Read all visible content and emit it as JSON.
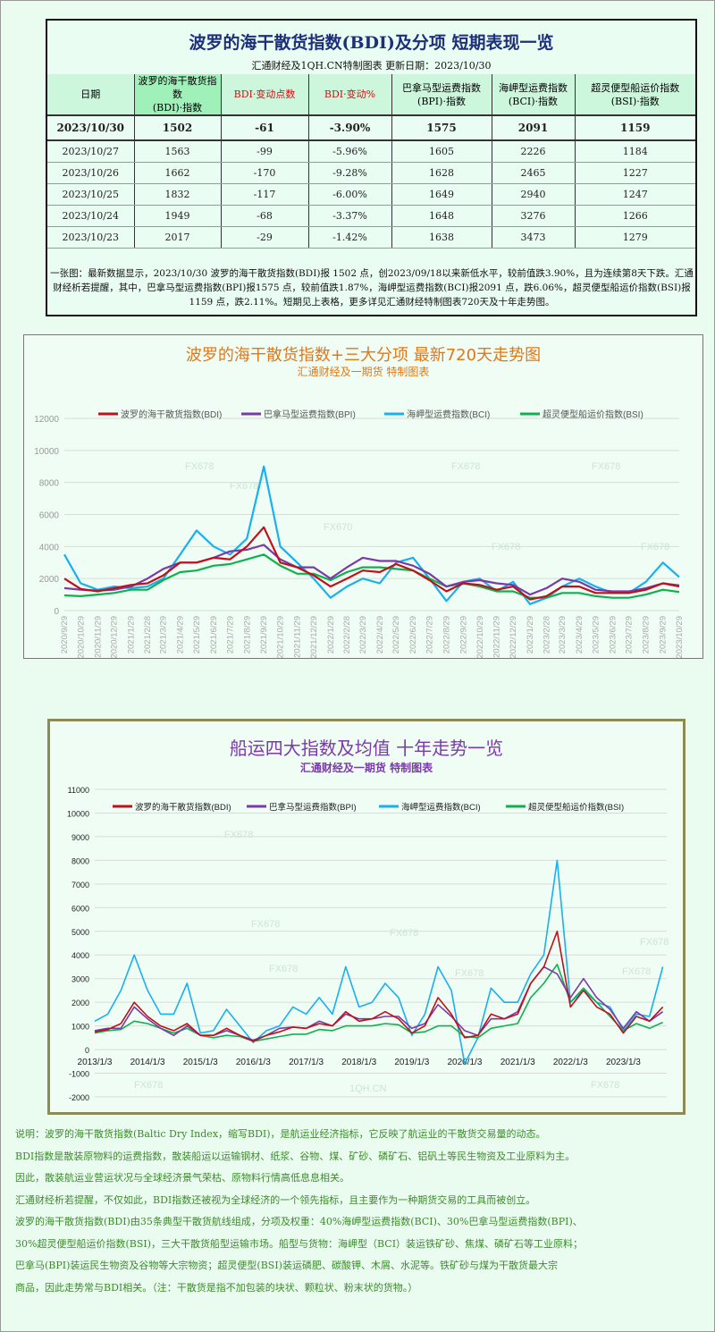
{
  "table": {
    "title": "波罗的海干散货指数(BDI)及分项 短期表现一览",
    "subtitle": "汇通财经及1QH.CN特制图表    更新日期：2023/10/30",
    "headers": [
      [
        "日期",
        ""
      ],
      [
        "波罗的海干散货指数",
        "(BDI)·指数"
      ],
      [
        "BDI·变动点数",
        ""
      ],
      [
        "BDI·变动%",
        ""
      ],
      [
        "巴拿马型运费指数",
        "(BPI)·指数"
      ],
      [
        "海岬型运费指数",
        "(BCI)·指数"
      ],
      [
        "超灵便型船运价指数",
        "(BSI)·指数"
      ]
    ],
    "rows": [
      [
        "2023/10/30",
        "1502",
        "-61",
        "-3.90%",
        "1575",
        "2091",
        "1159"
      ],
      [
        "2023/10/27",
        "1563",
        "-99",
        "-5.96%",
        "1605",
        "2226",
        "1184"
      ],
      [
        "2023/10/26",
        "1662",
        "-170",
        "-9.28%",
        "1628",
        "2465",
        "1227"
      ],
      [
        "2023/10/25",
        "1832",
        "-117",
        "-6.00%",
        "1649",
        "2940",
        "1247"
      ],
      [
        "2023/10/24",
        "1949",
        "-68",
        "-3.37%",
        "1648",
        "3276",
        "1266"
      ],
      [
        "2023/10/23",
        "2017",
        "-29",
        "-1.42%",
        "1638",
        "3473",
        "1279"
      ]
    ],
    "summary": "一张图：最新数据显示，2023/10/30 波罗的海干散货指数(BDI)报 1502 点，创2023/09/18以来新低水平，较前值跌3.90%，且为连续第8天下跌。汇通财经析若提醒，其中，巴拿马型运费指数(BPI)报1575 点，较前值跌1.87%，海岬型运费指数(BCI)报2091 点，跌6.06%，超灵便型船运价指数(BSI)报1159 点，跌2.11%。短期见上表格，更多详见汇通财经特制图表720天及十年走势图。"
  },
  "colors": {
    "BDI": "#c0101a",
    "BPI": "#7a3aa8",
    "BCI": "#18b0ee",
    "BSI": "#10b050",
    "title1": "#e07818",
    "title2": "#7a3aa8",
    "notes": "#3d8a2c"
  },
  "chart_data": [
    {
      "type": "line",
      "title": "波罗的海干散货指数+三大分项  最新720天走势图",
      "subtitle": "汇通财经及一期货  特制图表",
      "ylim": [
        0,
        12000
      ],
      "yticks": [
        0,
        2000,
        4000,
        6000,
        8000,
        10000,
        12000
      ],
      "grid": true,
      "legend": "top",
      "watermarks": [
        "FX678",
        "FX678",
        "FX678",
        "FX670",
        "FX678",
        "FX678",
        "FX678"
      ],
      "x": [
        "2020/9/29",
        "2020/10/29",
        "2020/11/29",
        "2020/12/29",
        "2021/1/29",
        "2021/2/28",
        "2021/3/29",
        "2021/4/29",
        "2021/5/29",
        "2021/6/29",
        "2021/7/29",
        "2021/8/29",
        "2021/9/29",
        "2021/10/29",
        "2021/11/29",
        "2021/12/29",
        "2022/1/29",
        "2022/2/28",
        "2022/3/29",
        "2022/4/29",
        "2022/5/29",
        "2022/6/29",
        "2022/7/29",
        "2022/8/29",
        "2022/9/29",
        "2022/10/29",
        "2022/11/29",
        "2022/12/29",
        "2023/1/29",
        "2023/2/28",
        "2023/3/29",
        "2023/4/29",
        "2023/5/29",
        "2023/6/29",
        "2023/7/29",
        "2023/8/29",
        "2023/9/29",
        "2023/10/29"
      ],
      "series": [
        {
          "name": "波罗的海干散货指数(BDI)",
          "key": "BDI",
          "values": [
            2000,
            1350,
            1200,
            1400,
            1600,
            1700,
            2200,
            3000,
            3000,
            3300,
            3200,
            4000,
            5200,
            3000,
            2700,
            2200,
            1500,
            2000,
            2500,
            2400,
            2900,
            2500,
            1900,
            1200,
            1700,
            1600,
            1300,
            1500,
            700,
            900,
            1500,
            1500,
            1100,
            1100,
            1100,
            1300,
            1700,
            1500
          ]
        },
        {
          "name": "巴拿马型运费指数(BPI)",
          "key": "BPI",
          "values": [
            1400,
            1300,
            1250,
            1300,
            1500,
            2000,
            2600,
            3000,
            3000,
            3300,
            3700,
            3800,
            4100,
            3200,
            2700,
            2700,
            2000,
            2700,
            3300,
            3100,
            3100,
            2800,
            2300,
            1500,
            1800,
            1900,
            1700,
            1600,
            1000,
            1400,
            2000,
            1800,
            1300,
            1200,
            1200,
            1400,
            1700,
            1575
          ]
        },
        {
          "name": "海岬型运费指数(BCI)",
          "key": "BCI",
          "values": [
            3500,
            1700,
            1300,
            1500,
            1400,
            1500,
            2000,
            3500,
            5000,
            4000,
            3500,
            4500,
            9000,
            4000,
            3000,
            2000,
            800,
            1500,
            2000,
            1700,
            3000,
            3300,
            2000,
            600,
            1800,
            2000,
            1200,
            1800,
            400,
            800,
            1500,
            2000,
            1500,
            1100,
            1100,
            1800,
            3000,
            2091
          ]
        },
        {
          "name": "超灵便型船运价指数(BSI)",
          "key": "BSI",
          "values": [
            950,
            900,
            1000,
            1100,
            1300,
            1300,
            1900,
            2400,
            2500,
            2800,
            2900,
            3200,
            3500,
            2800,
            2300,
            2300,
            1900,
            2400,
            2700,
            2700,
            2600,
            2500,
            2000,
            1500,
            1700,
            1500,
            1200,
            1200,
            800,
            800,
            1100,
            1100,
            900,
            800,
            800,
            1000,
            1300,
            1159
          ]
        }
      ]
    },
    {
      "type": "line",
      "title": "船运四大指数及均值 十年走势一览",
      "subtitle": "汇通财经及一期货 特制图表",
      "ylim": [
        -2000,
        11000
      ],
      "yticks": [
        -2000,
        -1000,
        0,
        1000,
        2000,
        3000,
        4000,
        5000,
        6000,
        7000,
        8000,
        9000,
        10000,
        11000
      ],
      "grid": true,
      "legend": "top",
      "xticks": [
        "2013/1/3",
        "2014/1/3",
        "2015/1/3",
        "2016/1/3",
        "2017/1/3",
        "2018/1/3",
        "2019/1/3",
        "2020/1/3",
        "2021/1/3",
        "2022/1/3",
        "2023/1/3"
      ],
      "watermarks": [
        "FX678",
        "FX678",
        "FX678",
        "FX678",
        "FX678",
        "FX678",
        "FX678",
        "FX678",
        "1QH.CN",
        "FX678"
      ],
      "x": [
        "2013/1/3",
        "2013/4/3",
        "2013/7/3",
        "2013/10/3",
        "2014/1/3",
        "2014/4/3",
        "2014/7/3",
        "2014/10/3",
        "2015/1/3",
        "2015/4/3",
        "2015/7/3",
        "2015/10/3",
        "2016/1/3",
        "2016/4/3",
        "2016/7/3",
        "2016/10/3",
        "2017/1/3",
        "2017/4/3",
        "2017/7/3",
        "2017/10/3",
        "2018/1/3",
        "2018/4/3",
        "2018/7/3",
        "2018/10/3",
        "2019/1/3",
        "2019/4/3",
        "2019/7/3",
        "2019/10/3",
        "2020/1/3",
        "2020/4/3",
        "2020/7/3",
        "2020/10/3",
        "2021/1/3",
        "2021/4/3",
        "2021/7/3",
        "2021/10/3",
        "2022/1/3",
        "2022/4/3",
        "2022/7/3",
        "2022/10/3",
        "2023/1/3",
        "2023/4/3",
        "2023/7/3",
        "2023/10/3"
      ],
      "series": [
        {
          "name": "波罗的海干散货指数(BDI)",
          "key": "BDI",
          "values": [
            750,
            850,
            1100,
            2000,
            1400,
            1000,
            800,
            1100,
            600,
            600,
            900,
            600,
            350,
            600,
            750,
            950,
            900,
            1100,
            1000,
            1600,
            1200,
            1300,
            1600,
            1300,
            700,
            1000,
            2200,
            1500,
            500,
            600,
            1500,
            1300,
            1500,
            2800,
            3500,
            5000,
            1800,
            2500,
            1800,
            1500,
            700,
            1400,
            1200,
            1800
          ]
        },
        {
          "name": "巴拿马型运费指数(BPI)",
          "key": "BPI",
          "values": [
            800,
            900,
            900,
            1800,
            1300,
            900,
            600,
            1000,
            600,
            600,
            800,
            600,
            400,
            600,
            900,
            950,
            900,
            1200,
            1000,
            1500,
            1300,
            1300,
            1400,
            1400,
            900,
            1100,
            1900,
            1400,
            800,
            600,
            1300,
            1300,
            1600,
            2800,
            3500,
            3200,
            2200,
            3000,
            2200,
            1700,
            900,
            1600,
            1200,
            1600
          ]
        },
        {
          "name": "海岬型运费指数(BCI)",
          "key": "BCI",
          "values": [
            1200,
            1500,
            2500,
            4000,
            2500,
            1500,
            1500,
            2800,
            700,
            800,
            1700,
            1000,
            300,
            800,
            1000,
            1800,
            1500,
            2200,
            1500,
            3500,
            1800,
            2000,
            2800,
            2200,
            600,
            1500,
            3500,
            2500,
            -600,
            500,
            2600,
            2000,
            2000,
            3200,
            4000,
            8000,
            2000,
            2500,
            2000,
            1800,
            800,
            1500,
            1400,
            3500
          ]
        },
        {
          "name": "超灵便型船运价指数(BSI)",
          "key": "BSI",
          "values": [
            700,
            800,
            850,
            1200,
            1100,
            900,
            700,
            900,
            600,
            500,
            600,
            550,
            350,
            450,
            550,
            650,
            650,
            850,
            800,
            1000,
            1000,
            1000,
            1100,
            1050,
            700,
            750,
            1000,
            1000,
            550,
            500,
            900,
            1000,
            1100,
            2200,
            2800,
            3600,
            2000,
            2600,
            2000,
            1400,
            800,
            1100,
            900,
            1150
          ]
        }
      ]
    }
  ],
  "notes": [
    "说明：波罗的海干散货指数(Baltic Dry Index，缩写BDI)，是航运业经济指标，它反映了航运业的干散货交易量的动态。",
    "BDI指数是散装原物料的运费指数，散装船运以运输钢材、纸浆、谷物、煤、矿砂、磷矿石、铝矾土等民生物资及工业原料为主。",
    "因此，散装航运业营运状况与全球经济景气荣枯、原物料行情高低息息相关。",
    "汇通财经析若提醒，不仅如此，BDI指数还被视为全球经济的一个领先指标，且主要作为一种期货交易的工具而被创立。",
    "波罗的海干散货指数(BDI)由35条典型干散货航线组成，分项及权重：40%海岬型运费指数(BCI)、30%巴拿马型运费指数(BPI)、",
    "30%超灵便型船运价指数(BSI)，三大干散货船型运输市场。船型与货物：海岬型（BCI）装运铁矿砂、焦煤、磷矿石等工业原料；",
    "巴拿马(BPI)装运民生物资及谷物等大宗物资；超灵便型(BSI)装运磷肥、碳酸钾、木屑、水泥等。铁矿砂与煤为干散货最大宗",
    "商品，因此走势常与BDI相关。（注：干散货是指不加包装的块状、颗粒状、粉末状的货物。）"
  ]
}
